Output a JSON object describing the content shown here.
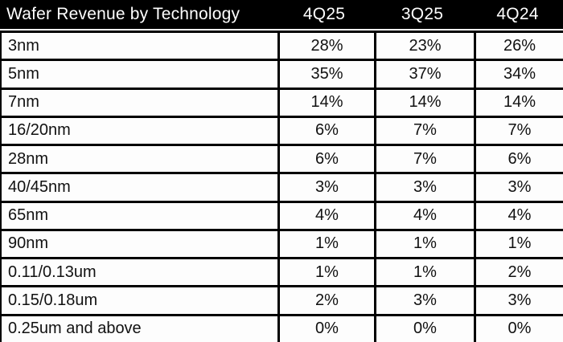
{
  "colors": {
    "header_bg": "#000000",
    "header_text": "#ffffff",
    "row_bg": "#fdfdfd",
    "border": "#000000",
    "text": "#111111"
  },
  "chart_data": {
    "type": "table",
    "title": "Wafer Revenue by Technology",
    "columns": [
      "Wafer Revenue by Technology",
      "4Q25",
      "3Q25",
      "4Q24"
    ],
    "rows": [
      {
        "label": "3nm",
        "values": [
          "28%",
          "23%",
          "26%"
        ]
      },
      {
        "label": "5nm",
        "values": [
          "35%",
          "37%",
          "34%"
        ]
      },
      {
        "label": "7nm",
        "values": [
          "14%",
          "14%",
          "14%"
        ]
      },
      {
        "label": "16/20nm",
        "values": [
          "6%",
          "7%",
          "7%"
        ]
      },
      {
        "label": "28nm",
        "values": [
          "6%",
          "7%",
          "6%"
        ]
      },
      {
        "label": "40/45nm",
        "values": [
          "3%",
          "3%",
          "3%"
        ]
      },
      {
        "label": "65nm",
        "values": [
          "4%",
          "4%",
          "4%"
        ]
      },
      {
        "label": "90nm",
        "values": [
          "1%",
          "1%",
          "1%"
        ]
      },
      {
        "label": "0.11/0.13um",
        "values": [
          "1%",
          "1%",
          "2%"
        ]
      },
      {
        "label": "0.15/0.18um",
        "values": [
          "2%",
          "3%",
          "3%"
        ]
      },
      {
        "label": "0.25um and above",
        "values": [
          "0%",
          "0%",
          "0%"
        ]
      }
    ]
  }
}
